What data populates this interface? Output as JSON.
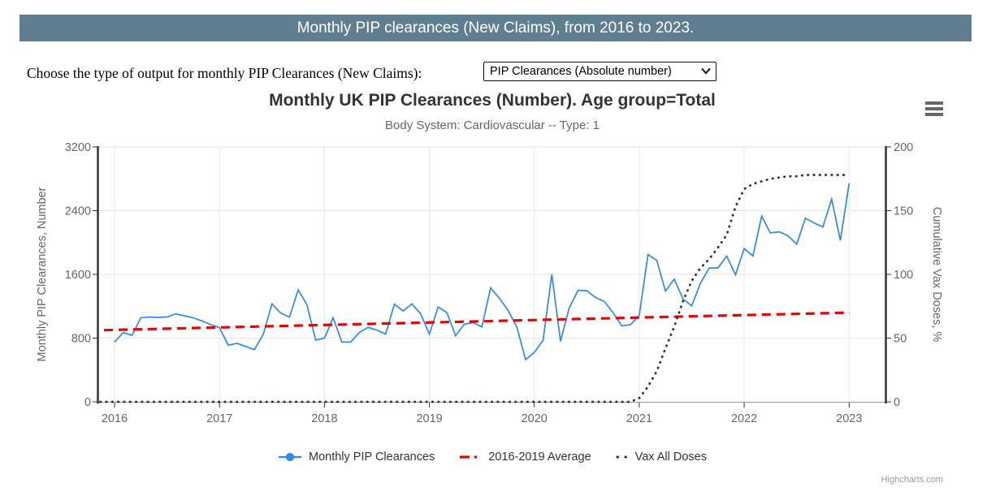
{
  "header": {
    "title": "Monthly PIP clearances (New Claims), from 2016 to 2023.",
    "bg_color": "#5f7f90"
  },
  "controls": {
    "label": "Choose the type of output for monthly PIP Clearances (New Claims):",
    "select_value": "PIP Clearances (Absolute number)"
  },
  "credits": "Highcharts.com",
  "icons": {
    "menu": "hamburger-icon",
    "select": "chevron-down-icon"
  },
  "chart_data": {
    "type": "line",
    "title": "Monthly UK PIP Clearances (Number). Age group=Total",
    "subtitle": "Body System: Cardiovascular -- Type: 1",
    "grid": true,
    "legend_position": "bottom-center",
    "x_tick_labels": [
      "2016",
      "2017",
      "2018",
      "2019",
      "2020",
      "2021",
      "2022",
      "2023"
    ],
    "x_unit": "month",
    "x_range_months": 85,
    "yaxis_left": {
      "title": "Monthly PIP Clearances, Number",
      "ticks": [
        0,
        800,
        1600,
        2400,
        3200
      ],
      "lim": [
        0,
        3200
      ]
    },
    "yaxis_right": {
      "title": "Cumulative Vax Doses, %",
      "ticks": [
        0,
        50,
        100,
        150,
        200
      ],
      "lim": [
        0,
        200
      ]
    },
    "series": [
      {
        "name": "Monthly PIP Clearances",
        "axis": "left",
        "color": "#3189e0",
        "dash": "solid",
        "start": "2016-01",
        "values": [
          750,
          870,
          835,
          1055,
          1065,
          1060,
          1065,
          1105,
          1080,
          1055,
          1015,
          970,
          930,
          710,
          735,
          695,
          655,
          845,
          1230,
          1115,
          1065,
          1405,
          1220,
          775,
          800,
          1055,
          750,
          750,
          870,
          935,
          900,
          850,
          1225,
          1140,
          1230,
          1105,
          850,
          1190,
          1120,
          830,
          975,
          995,
          940,
          1430,
          1300,
          1150,
          940,
          530,
          620,
          770,
          1600,
          760,
          1180,
          1400,
          1395,
          1310,
          1260,
          1120,
          955,
          970,
          1085,
          1850,
          1775,
          1390,
          1540,
          1290,
          1205,
          1490,
          1680,
          1680,
          1830,
          1595,
          1925,
          1830,
          2330,
          2120,
          2135,
          2085,
          1980,
          2305,
          2245,
          2195,
          2545,
          2025,
          2745
        ]
      },
      {
        "name": "2016-2019 Average",
        "axis": "left",
        "color": "#e90000",
        "dash": "dashed",
        "trend_endpoints": [
          900,
          1120
        ]
      },
      {
        "name": "Vax All Doses",
        "axis": "right",
        "color": "#1e3040",
        "dash": "dotted",
        "start": "2016-01",
        "values": [
          0,
          0,
          0,
          0,
          0,
          0,
          0,
          0,
          0,
          0,
          0,
          0,
          0,
          0,
          0,
          0,
          0,
          0,
          0,
          0,
          0,
          0,
          0,
          0,
          0,
          0,
          0,
          0,
          0,
          0,
          0,
          0,
          0,
          0,
          0,
          0,
          0,
          0,
          0,
          0,
          0,
          0,
          0,
          0,
          0,
          0,
          0,
          0,
          0,
          0,
          0,
          0,
          0,
          0,
          0,
          0,
          0,
          0,
          0,
          0,
          3,
          12,
          24,
          42,
          59,
          79,
          95,
          105,
          112,
          121,
          131,
          153,
          167,
          171,
          173,
          175,
          176,
          177,
          177,
          178,
          178,
          178,
          178,
          178,
          178
        ]
      }
    ]
  }
}
